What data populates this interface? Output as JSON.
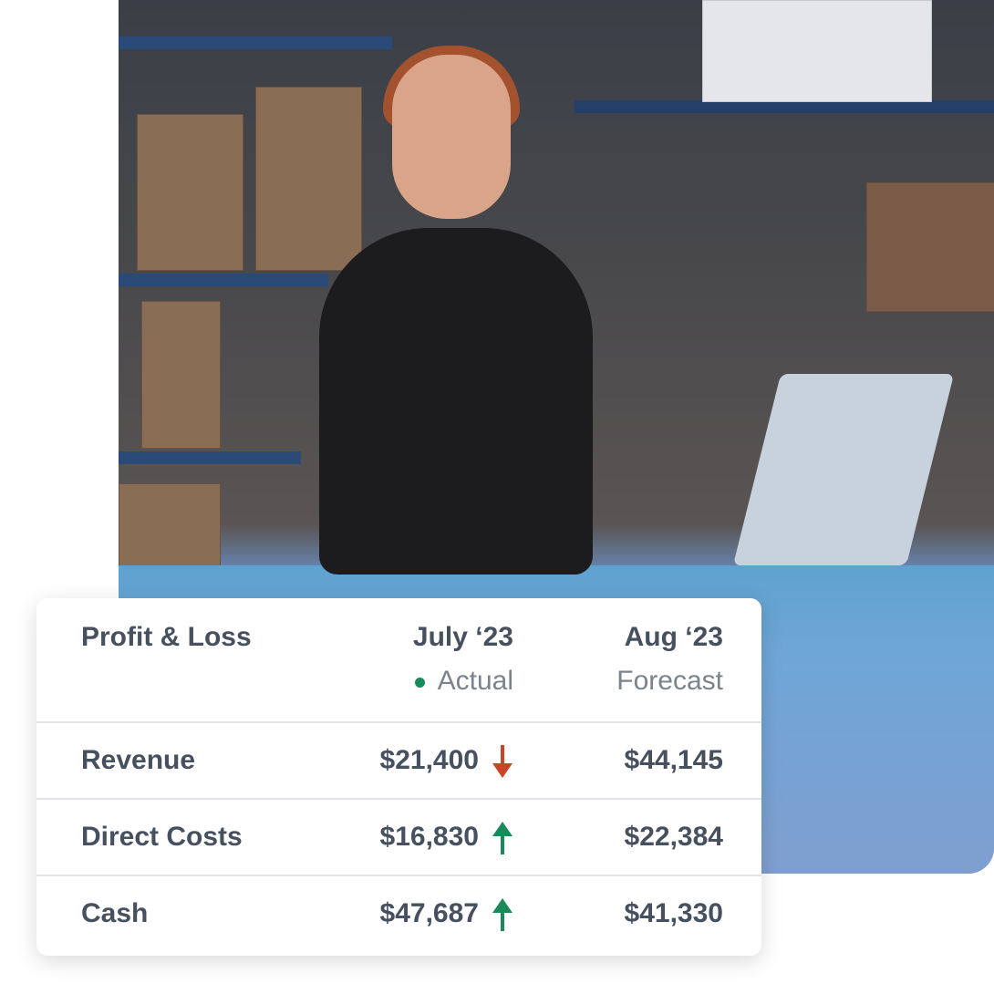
{
  "colors": {
    "accent_green": "#1a8a5a",
    "down_red": "#c8452a",
    "text": "#46505e",
    "muted": "#7b838d"
  },
  "card": {
    "title": "Profit & Loss",
    "col1": {
      "period": "July ‘23",
      "status": "Actual"
    },
    "col2": {
      "period": "Aug ‘23",
      "status": "Forecast"
    },
    "rows": [
      {
        "label": "Revenue",
        "actual": "$21,400",
        "trend": "down",
        "forecast": "$44,145"
      },
      {
        "label": "Direct Costs",
        "actual": "$16,830",
        "trend": "up",
        "forecast": "$22,384"
      },
      {
        "label": "Cash",
        "actual": "$47,687",
        "trend": "up",
        "forecast": "$41,330"
      }
    ]
  }
}
